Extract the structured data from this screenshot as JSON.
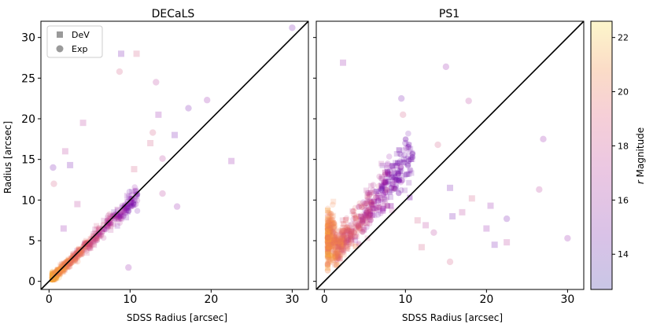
{
  "chart_data": [
    {
      "type": "scatter",
      "title": "DECaLS",
      "xlabel": "SDSS Radius [arcsec]",
      "ylabel": "Radius [arcsec]",
      "xlim": [
        -1,
        32
      ],
      "ylim": [
        -1,
        32
      ],
      "xticks": [
        0,
        10,
        20,
        30
      ],
      "yticks": [
        0,
        5,
        10,
        15,
        20,
        25,
        30
      ],
      "reference_line": "y = x",
      "legend": {
        "position": "top-left",
        "entries": [
          {
            "label": "DeV",
            "marker": "square"
          },
          {
            "label": "Exp",
            "marker": "circle"
          }
        ]
      },
      "series": [
        {
          "name": "DeV",
          "marker": "square",
          "points": [
            [
              8.9,
              28.0
            ],
            [
              10.8,
              28.0
            ],
            [
              4.2,
              19.5
            ],
            [
              13.5,
              20.5
            ],
            [
              15.5,
              18.0
            ],
            [
              12.5,
              17.0
            ],
            [
              2.0,
              16.0
            ],
            [
              22.5,
              14.8
            ],
            [
              2.6,
              14.3
            ],
            [
              10.5,
              13.8
            ],
            [
              3.5,
              9.5
            ],
            [
              1.8,
              6.5
            ]
          ]
        },
        {
          "name": "Exp",
          "marker": "circle",
          "points": [
            [
              30.0,
              31.2
            ],
            [
              8.7,
              25.8
            ],
            [
              13.2,
              24.5
            ],
            [
              19.5,
              22.3
            ],
            [
              17.2,
              21.3
            ],
            [
              12.8,
              18.3
            ],
            [
              14.0,
              10.8
            ],
            [
              15.8,
              9.2
            ],
            [
              0.5,
              14.0
            ],
            [
              0.6,
              12.0
            ],
            [
              14.0,
              15.1
            ],
            [
              9.8,
              1.7
            ]
          ]
        }
      ],
      "summary": "dense cloud along y = x from ~0.5 to ~10 arcsec, scatter increasing to 30"
    },
    {
      "type": "scatter",
      "title": "PS1",
      "xlabel": "SDSS Radius [arcsec]",
      "ylabel": "",
      "xlim": [
        -1,
        32
      ],
      "ylim": [
        -1,
        32
      ],
      "xticks": [
        0,
        10,
        20,
        30
      ],
      "yticks": [
        0,
        5,
        10,
        15,
        20,
        25,
        30
      ],
      "reference_line": "y = x",
      "series": [
        {
          "name": "DeV",
          "marker": "square",
          "points": [
            [
              2.3,
              26.9
            ],
            [
              15.5,
              11.5
            ],
            [
              18.2,
              10.2
            ],
            [
              17.0,
              8.5
            ],
            [
              20.5,
              9.3
            ],
            [
              15.8,
              8.0
            ],
            [
              11.5,
              7.5
            ],
            [
              12.5,
              6.9
            ],
            [
              20.0,
              6.5
            ],
            [
              21.0,
              4.5
            ],
            [
              12.0,
              4.2
            ],
            [
              22.5,
              4.8
            ]
          ]
        },
        {
          "name": "Exp",
          "marker": "circle",
          "points": [
            [
              15.0,
              26.4
            ],
            [
              9.5,
              22.5
            ],
            [
              9.7,
              20.5
            ],
            [
              17.8,
              22.2
            ],
            [
              27.0,
              17.5
            ],
            [
              10.0,
              17.0
            ],
            [
              14.0,
              16.8
            ],
            [
              26.5,
              11.3
            ],
            [
              30.0,
              5.3
            ],
            [
              22.5,
              7.7
            ],
            [
              15.5,
              2.4
            ],
            [
              13.5,
              6.0
            ]
          ]
        }
      ],
      "summary": "points lie mostly above y = x, PS1 radii overestimated for small SDSS radii"
    }
  ],
  "colorbar": {
    "label": "r Magnitude",
    "ticks": [
      14,
      16,
      18,
      20,
      22
    ],
    "range": [
      12.7,
      22.6
    ],
    "colormap": "plasma",
    "alpha": 0.25
  }
}
